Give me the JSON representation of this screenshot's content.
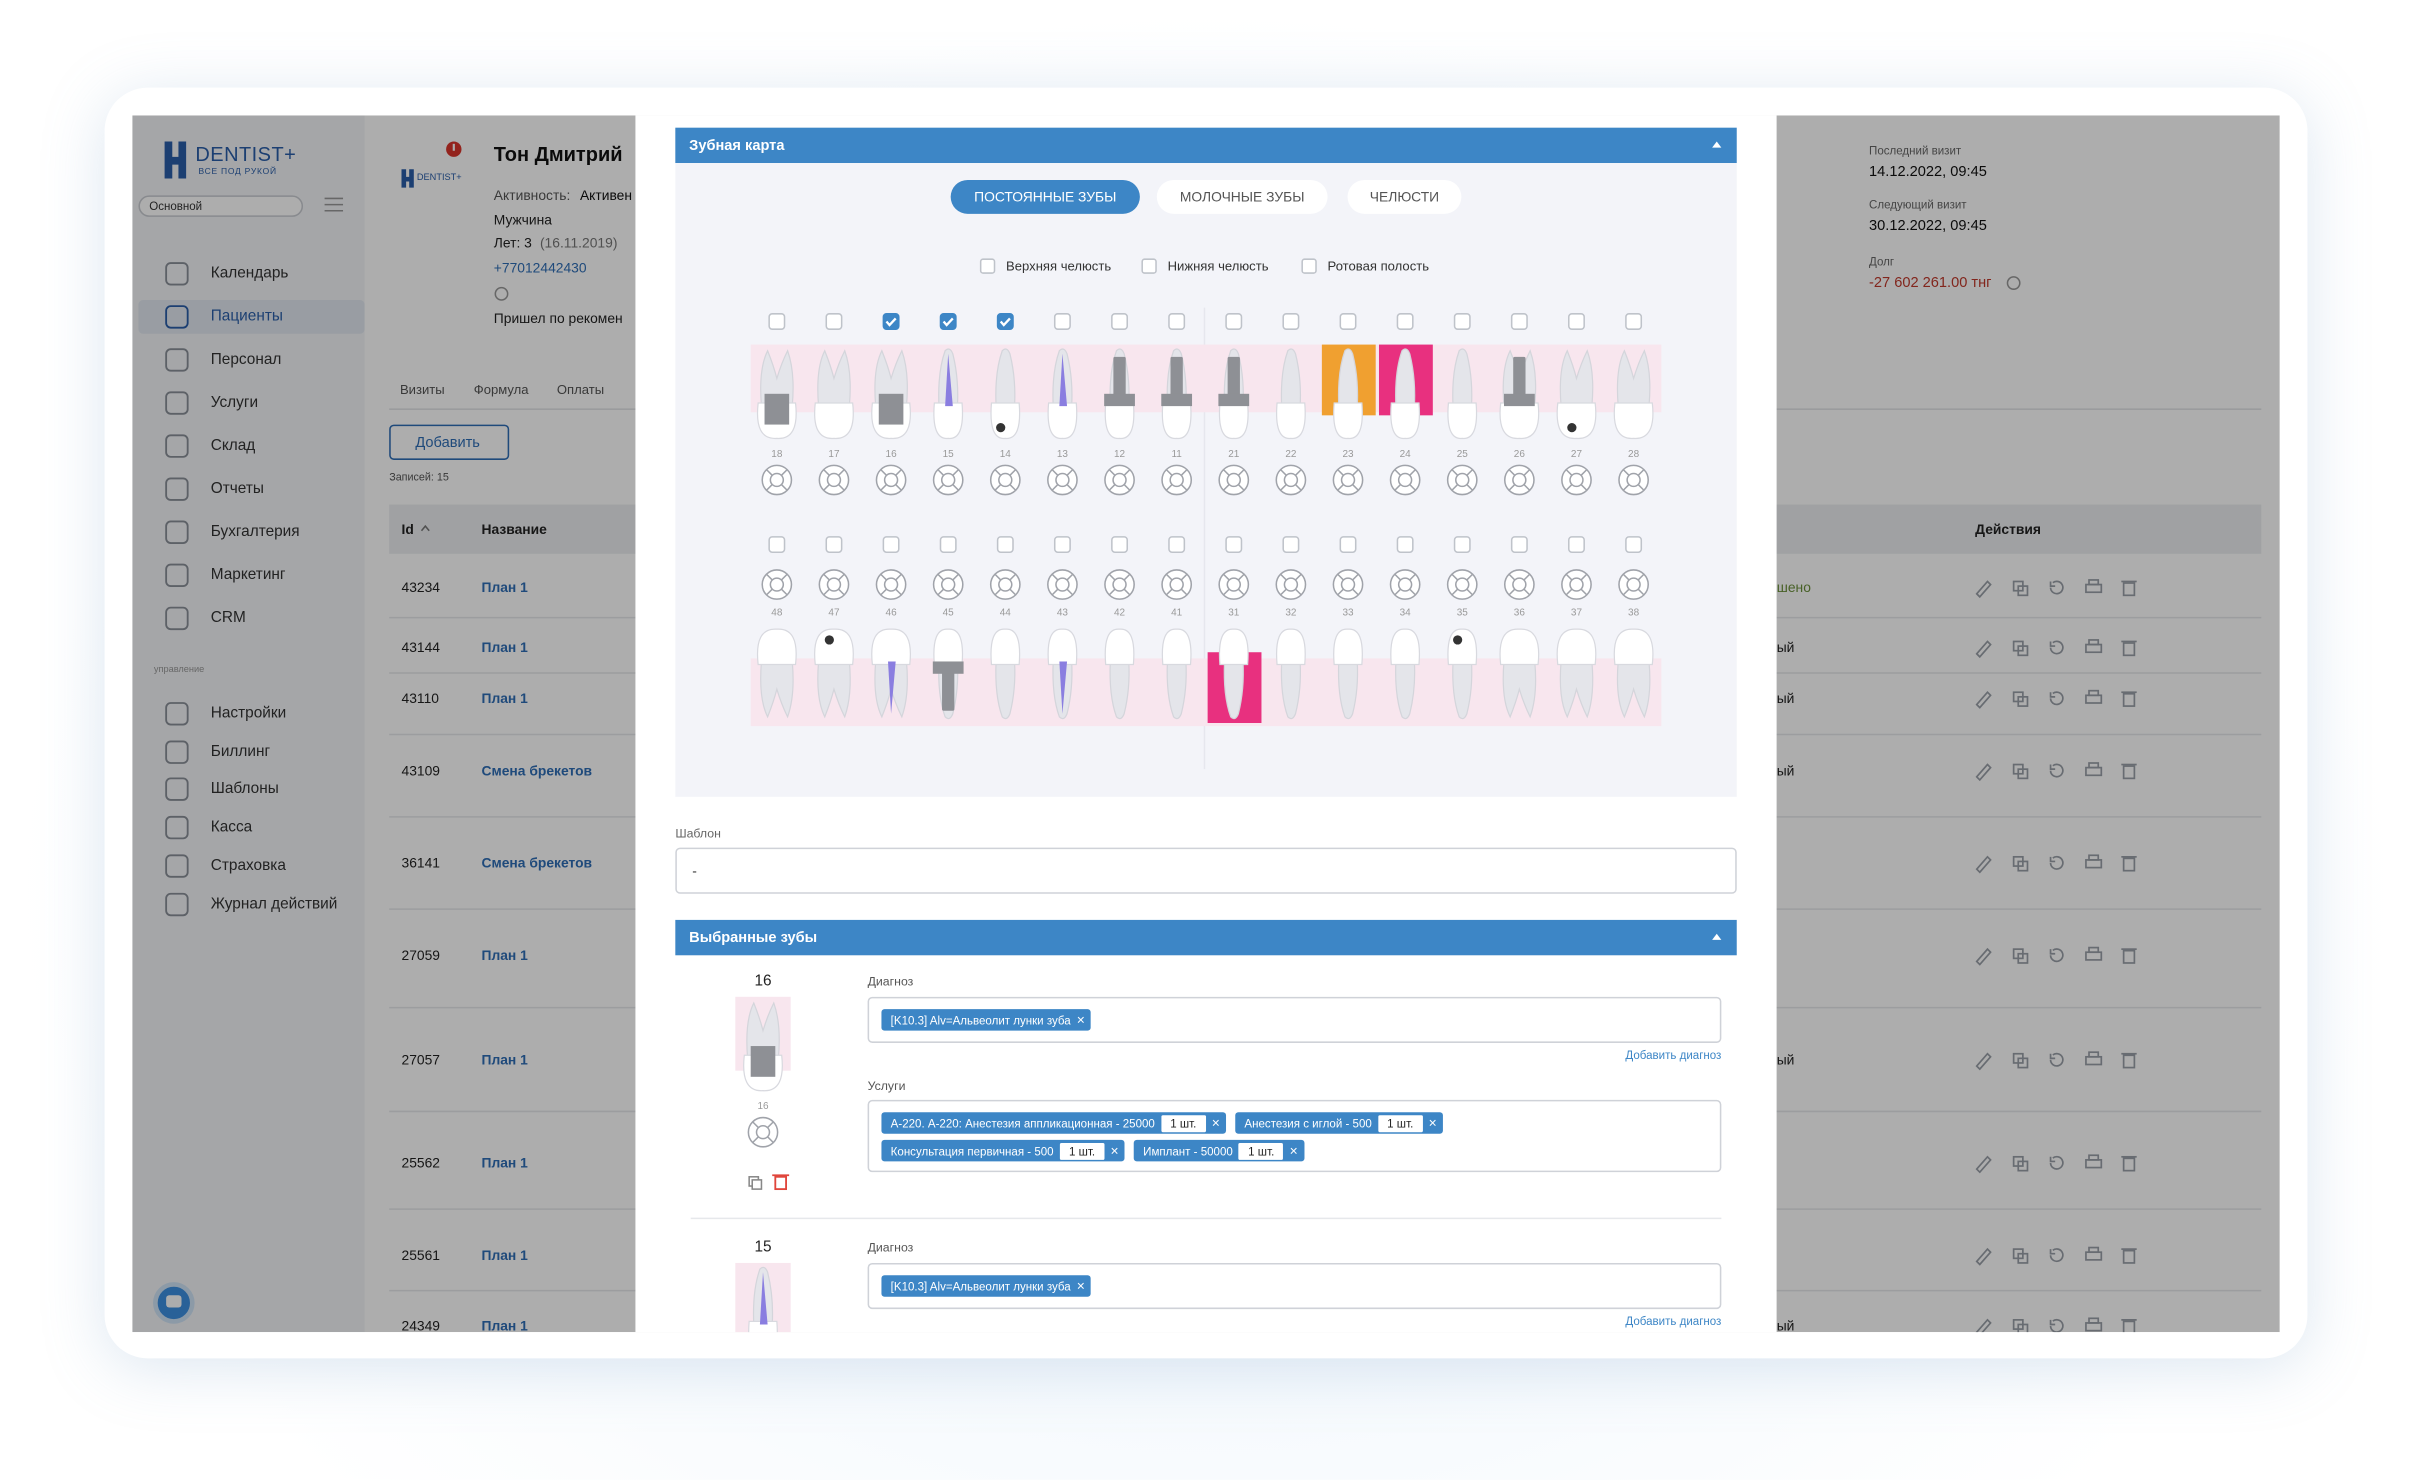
{
  "sidebar": {
    "logo": "DENTIST+",
    "tagline": "ВСЕ ПОД РУКОЙ",
    "branch": "Основной",
    "menu": [
      "Календарь",
      "Пациенты",
      "Персонал",
      "Услуги",
      "Склад",
      "Отчеты",
      "Бухгалтерия",
      "Маркетинг",
      "CRM"
    ],
    "active_index": 1,
    "section": "управление",
    "admin_menu": [
      "Настройки",
      "Биллинг",
      "Шаблоны",
      "Касса",
      "Страховка",
      "Журнал действий"
    ]
  },
  "patient": {
    "name": "Тон Дмитрий",
    "activity_label": "Активность:",
    "activity": "Активен",
    "gender": "Мужчина",
    "age": "Лет: 3",
    "birth": "(16.11.2019)",
    "phone": "+77012442430",
    "source": "Пришел по рекомен"
  },
  "visit_info": [
    {
      "label": "Последний визит",
      "value": "14.12.2022, 09:45"
    },
    {
      "label": "Следующий визит",
      "value": "30.12.2022, 09:45"
    }
  ],
  "debt": {
    "label": "Долг",
    "value": "-27 602 261.00 тнг"
  },
  "patient_tabs": [
    "Визиты",
    "Формула",
    "Оплаты"
  ],
  "add_button": "Добавить",
  "records": "Записей: 15",
  "table": {
    "columns": [
      "Id",
      "Название"
    ],
    "actions": "Действия",
    "rows": [
      {
        "id": "43234",
        "name": "План 1",
        "status": "шено"
      },
      {
        "id": "43144",
        "name": "План 1",
        "status": "ый"
      },
      {
        "id": "43110",
        "name": "План 1",
        "status": "ый"
      },
      {
        "id": "43109",
        "name": "Смена брекетов",
        "status": "ый"
      },
      {
        "id": "36141",
        "name": "Смена брекетов"
      },
      {
        "id": "27059",
        "name": "План 1"
      },
      {
        "id": "27057",
        "name": "План 1",
        "status": "ый"
      },
      {
        "id": "25562",
        "name": "План 1"
      },
      {
        "id": "25561",
        "name": "План 1"
      },
      {
        "id": "24349",
        "name": "План 1",
        "status": "ый"
      }
    ]
  },
  "dental_chart": {
    "title": "Зубная карта",
    "tabs": [
      "ПОСТОЯННЫЕ ЗУБЫ",
      "МОЛОЧНЫЕ ЗУБЫ",
      "ЧЕЛЮСТИ"
    ],
    "active_tab": 0,
    "options": [
      "Верхняя челюсть",
      "Нижняя челюсть",
      "Ротовая полость"
    ],
    "upper": [
      {
        "number": "18",
        "checked": false,
        "kind": "stump"
      },
      {
        "number": "17",
        "checked": false
      },
      {
        "number": "16",
        "checked": true,
        "kind": "stump"
      },
      {
        "number": "15",
        "checked": true,
        "kind": "canal"
      },
      {
        "number": "14",
        "checked": true,
        "kind": "caries"
      },
      {
        "number": "13",
        "checked": false,
        "kind": "canal"
      },
      {
        "number": "12",
        "checked": false,
        "kind": "implant"
      },
      {
        "number": "11",
        "checked": false,
        "kind": "implant"
      },
      {
        "number": "21",
        "checked": false,
        "kind": "implant"
      },
      {
        "number": "22",
        "checked": false
      },
      {
        "number": "23",
        "checked": false,
        "kind": "crown",
        "color": "#f0a030"
      },
      {
        "number": "24",
        "checked": false,
        "kind": "crown",
        "color": "#e8307f"
      },
      {
        "number": "25",
        "checked": false
      },
      {
        "number": "26",
        "checked": false,
        "kind": "implant"
      },
      {
        "number": "27",
        "checked": false,
        "kind": "caries"
      },
      {
        "number": "28",
        "checked": false
      }
    ],
    "lower": [
      {
        "number": "48",
        "checked": false
      },
      {
        "number": "47",
        "checked": false,
        "kind": "caries"
      },
      {
        "number": "46",
        "checked": false,
        "kind": "canal"
      },
      {
        "number": "45",
        "checked": false,
        "kind": "implant"
      },
      {
        "number": "44",
        "checked": false
      },
      {
        "number": "43",
        "checked": false,
        "kind": "canal"
      },
      {
        "number": "42",
        "checked": false
      },
      {
        "number": "41",
        "checked": false
      },
      {
        "number": "31",
        "checked": false,
        "kind": "crown",
        "color": "#e8307f"
      },
      {
        "number": "32",
        "checked": false
      },
      {
        "number": "33",
        "checked": false
      },
      {
        "number": "34",
        "checked": false
      },
      {
        "number": "35",
        "checked": false,
        "kind": "caries"
      },
      {
        "number": "36",
        "checked": false
      },
      {
        "number": "37",
        "checked": false
      },
      {
        "number": "38",
        "checked": false
      }
    ]
  },
  "template": {
    "label": "Шаблон",
    "value": "-"
  },
  "selected": {
    "title": "Выбранные зубы",
    "teeth": [
      {
        "number": "16",
        "diagnosis_label": "Диагноз",
        "diagnoses": [
          "[K10.3] Alv=Альвеолит лунки зуба"
        ],
        "add_diagnosis": "Добавить диагноз",
        "services_label": "Услуги",
        "services": [
          {
            "name": "А-220. А-220: Анестезия аппликационная - 25000",
            "qty": "1 шт."
          },
          {
            "name": "Анестезия с иглой - 500",
            "qty": "1 шт."
          },
          {
            "name": "Консультация первичная - 500",
            "qty": "1 шт."
          },
          {
            "name": "Имплант - 50000",
            "qty": "1 шт."
          }
        ]
      },
      {
        "number": "15",
        "diagnosis_label": "Диагноз",
        "diagnoses": [
          "[K10.3] Alv=Альвеолит лунки зуба"
        ],
        "add_diagnosis": "Добавить диагноз"
      }
    ]
  }
}
